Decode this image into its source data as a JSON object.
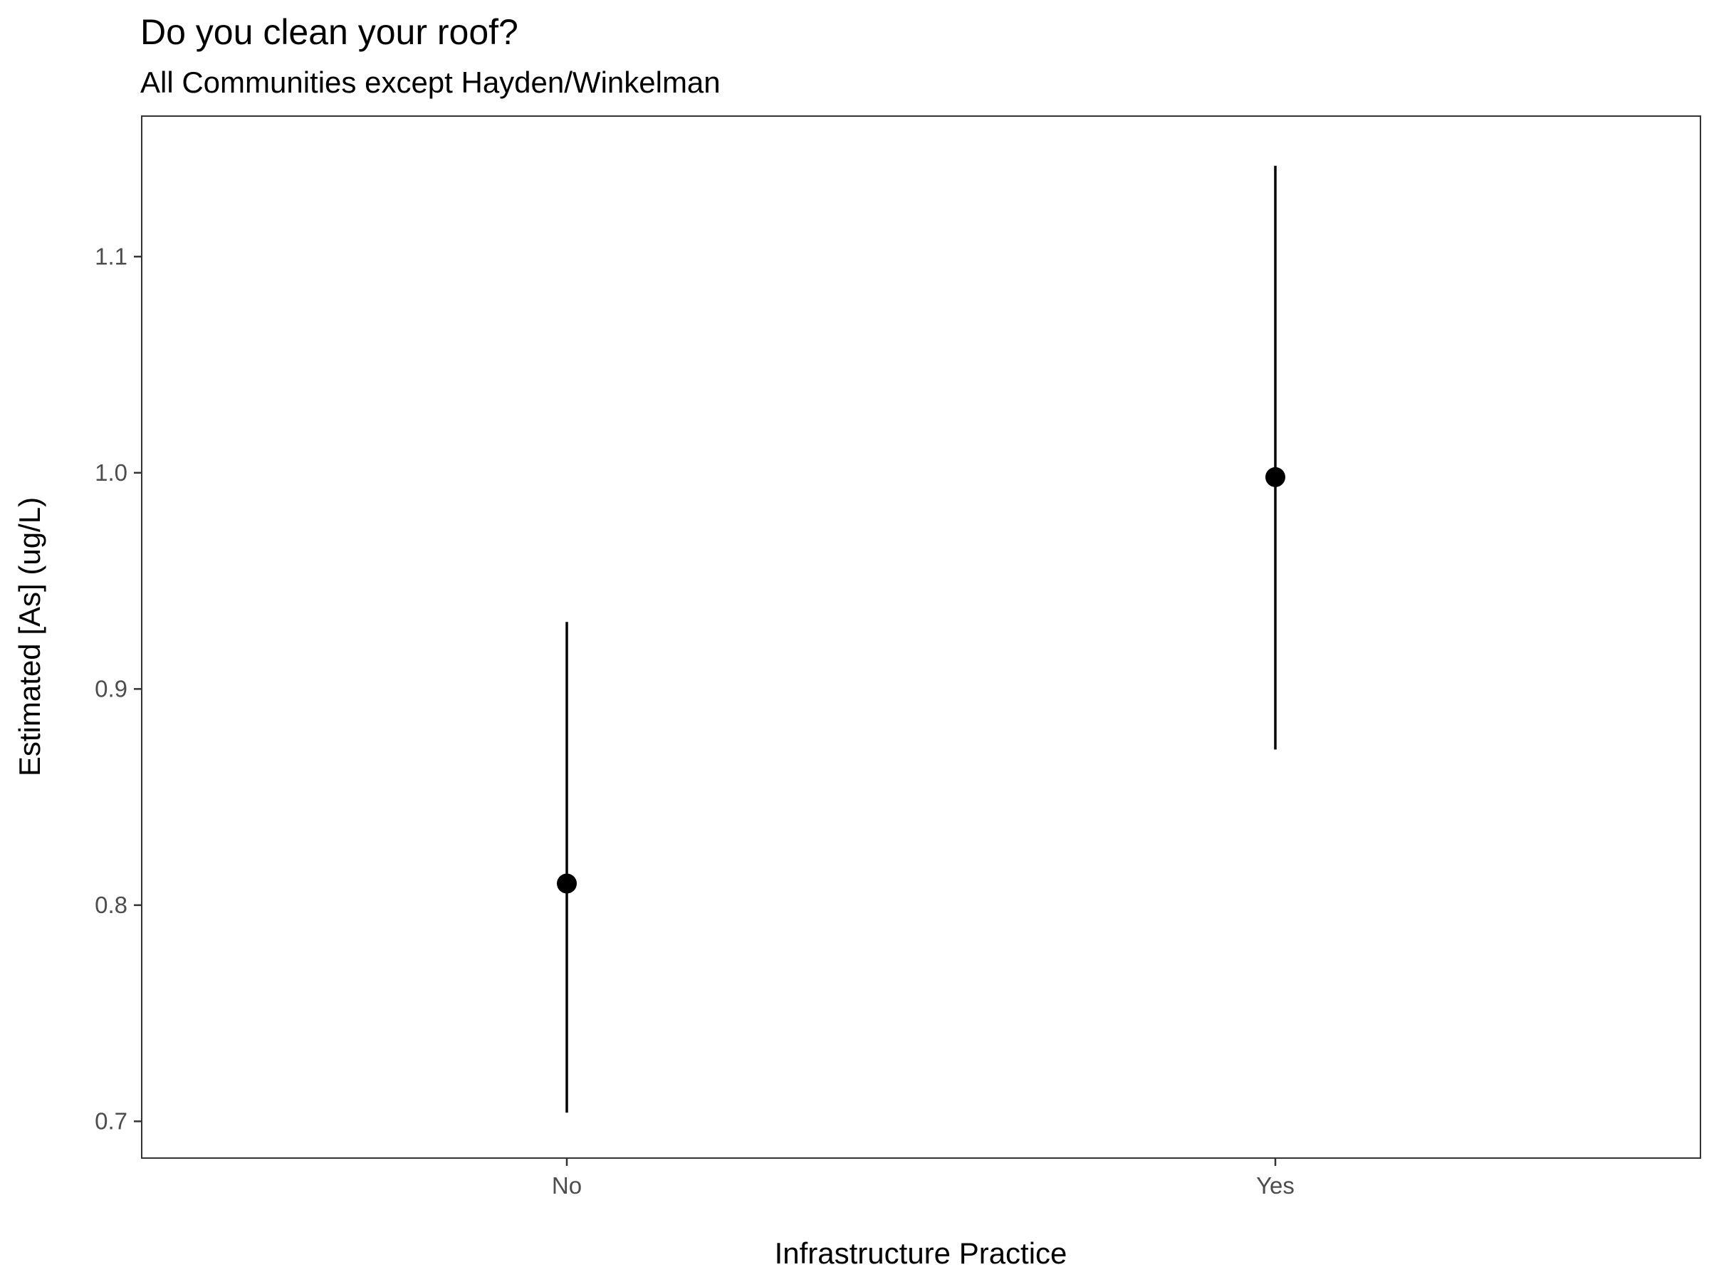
{
  "chart_data": {
    "type": "scatter",
    "title": "Do you clean your roof?",
    "subtitle": "All Communities except Hayden/Winkelman",
    "xlabel": "Infrastructure Practice",
    "ylabel": "Estimated [As] (ug/L)",
    "categories": [
      "No",
      "Yes"
    ],
    "estimates": [
      0.81,
      0.998
    ],
    "lower": [
      0.704,
      0.872
    ],
    "upper": [
      0.931,
      1.142
    ],
    "yticks": [
      0.7,
      0.8,
      0.9,
      1.0,
      1.1
    ],
    "ytick_labels": [
      "0.7",
      "0.8",
      "0.9",
      "1.0",
      "1.1"
    ],
    "ylim": [
      0.683,
      1.165
    ],
    "grid": false,
    "colors": {
      "point": "#000000",
      "errorbar": "#000000",
      "panel_border": "#333333",
      "tick_label": "#4d4d4d"
    }
  }
}
